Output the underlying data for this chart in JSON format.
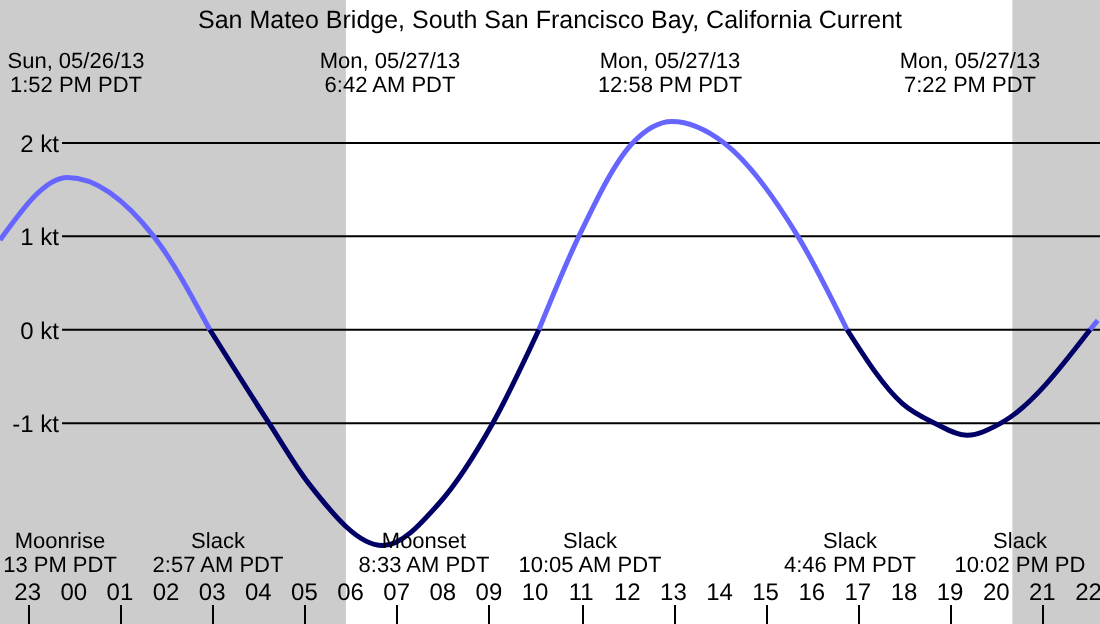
{
  "chart_data": {
    "type": "line",
    "title": "San Mateo Bridge, South San Francisco Bay, California Current",
    "xlim": [
      "--05-26T22:24",
      "--05-27T22:15"
    ],
    "ylim": [
      -3.15,
      3.53
    ],
    "xticks": [
      {
        "value": "--05-26T23:00",
        "label": "23"
      },
      {
        "value": "--05-27T00:00",
        "label": "00"
      },
      {
        "value": "--05-27T01:00",
        "label": "01"
      },
      {
        "value": "--05-27T02:00",
        "label": "02"
      },
      {
        "value": "--05-27T03:00",
        "label": "03"
      },
      {
        "value": "--05-27T04:00",
        "label": "04"
      },
      {
        "value": "--05-27T05:00",
        "label": "05"
      },
      {
        "value": "--05-27T06:00",
        "label": "06"
      },
      {
        "value": "--05-27T07:00",
        "label": "07"
      },
      {
        "value": "--05-27T08:00",
        "label": "08"
      },
      {
        "value": "--05-27T09:00",
        "label": "09"
      },
      {
        "value": "--05-27T10:00",
        "label": "10"
      },
      {
        "value": "--05-27T11:00",
        "label": "11"
      },
      {
        "value": "--05-27T12:00",
        "label": "12"
      },
      {
        "value": "--05-27T13:00",
        "label": "13"
      },
      {
        "value": "--05-27T14:00",
        "label": "14"
      },
      {
        "value": "--05-27T15:00",
        "label": "15"
      },
      {
        "value": "--05-27T16:00",
        "label": "16"
      },
      {
        "value": "--05-27T17:00",
        "label": "17"
      },
      {
        "value": "--05-27T18:00",
        "label": "18"
      },
      {
        "value": "--05-27T19:00",
        "label": "19"
      },
      {
        "value": "--05-27T20:00",
        "label": "20"
      },
      {
        "value": "--05-27T21:00",
        "label": "21"
      },
      {
        "value": "--05-27T22:00",
        "label": "22"
      }
    ],
    "yticks": [
      {
        "value": -1,
        "label": "-1 kt"
      },
      {
        "value": 0,
        "label": "0 kt"
      },
      {
        "value": 1,
        "label": "1 kt"
      },
      {
        "value": 2,
        "label": "2 kt"
      }
    ],
    "grid": "y",
    "line_style": "solid",
    "series": [
      {
        "color": "#6666ff",
        "x": [
          "--05-26T22:24",
          "--05-26T23:52",
          "--05-27T01:44",
          "--05-27T02:57",
          "--05-27T06:42",
          "--05-27T10:05",
          "--05-27T10:57",
          "--05-27T12:07",
          "--05-27T12:58",
          "--05-27T14:06",
          "--05-27T15:42",
          "--05-27T16:46",
          "--05-27T19:22",
          "--05-27T22:02",
          "--05-27T22:12"
        ],
        "values": [
          0.96,
          1.63,
          1.0,
          0,
          null,
          0,
          1,
          2,
          2.23,
          2,
          1,
          0,
          null,
          0,
          0.1
        ]
      },
      {
        "color": "#000066",
        "x": [
          "--05-27T02:57",
          "--05-27T04:14",
          "--05-27T05:06",
          "--05-27T06:42",
          "--05-27T07:55",
          "--05-27T09:05",
          "--05-27T10:05",
          "--05-27T13:00",
          "--05-27T16:46",
          "--05-27T17:58",
          "--05-27T18:40",
          "--05-27T19:22",
          "--05-27T20:06",
          "--05-27T22:02"
        ],
        "values": [
          0,
          -1,
          -1.65,
          -2.31,
          -1.86,
          -1,
          0,
          null,
          0,
          -0.79,
          -1,
          -1.13,
          -1,
          0
        ]
      }
    ],
    "bands": [
      {
        "axis": "x",
        "from": "--05-26T22:24",
        "to": "--05-27T05:54",
        "color": "#cccccc"
      },
      {
        "axis": "x",
        "from": "--05-27T20:21",
        "to": "--05-27T22:15",
        "color": "#cccccc"
      }
    ],
    "annotations": [
      "Sun, 05/26/13\n1:52 PM PDT",
      "Mon, 05/27/13\n6:42 AM PDT",
      "Mon, 05/27/13\n12:58 PM PDT",
      "Mon, 05/27/13\n7:22 PM PDT",
      "Moonrise\n13 PM PDT",
      "Slack\n2:57 AM PDT",
      "Moonset\n8:33 AM PDT",
      "Slack\n10:05 AM PDT",
      "Slack\n4:46 PM PDT",
      "Slack\n10:02 PM PD"
    ]
  }
}
